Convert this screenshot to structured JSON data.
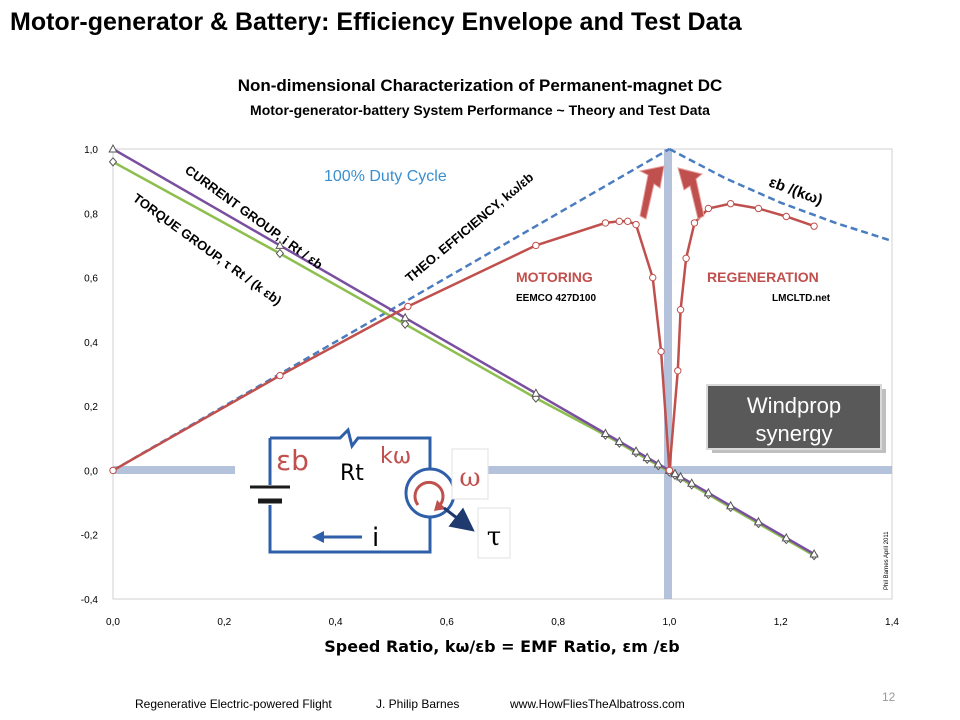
{
  "slide": {
    "title": "Motor-generator & Battery: Efficiency Envelope and Test Data"
  },
  "chart_data": {
    "type": "line",
    "title": "Non-dimensional Characterization of Permanent-magnet DC",
    "subtitle": "Motor-generator-battery System Performance ~ Theory and Test Data",
    "xlabel": "Speed Ratio, kω/εb = EMF Ratio, εm /εb",
    "xlim": [
      0,
      1.4
    ],
    "ylim": [
      -0.4,
      1.0
    ],
    "x_ticks": [
      "0,0",
      "0,2",
      "0,4",
      "0,6",
      "0,8",
      "1,0",
      "1,2",
      "1,4"
    ],
    "y_ticks": [
      "-0,4",
      "-0,2",
      "0,0",
      "0,2",
      "0,4",
      "0,6",
      "0,8",
      "1,0"
    ],
    "grid": false,
    "series": [
      {
        "name": "CURRENT GROUP, i Rt / εb",
        "color": "#7b4fa0",
        "marker": "triangle",
        "x": [
          0,
          0.3,
          0.525,
          0.76,
          0.885,
          0.91,
          0.94,
          0.96,
          0.98,
          1.0,
          1.01,
          1.02,
          1.04,
          1.07,
          1.11,
          1.16,
          1.21,
          1.26
        ],
        "y": [
          1.0,
          0.7,
          0.475,
          0.24,
          0.115,
          0.09,
          0.06,
          0.04,
          0.02,
          0.0,
          -0.01,
          -0.02,
          -0.04,
          -0.07,
          -0.11,
          -0.16,
          -0.21,
          -0.26
        ]
      },
      {
        "name": "TORQUE GROUP, τ Rt / (k εb)",
        "color": "#8dbf4f",
        "marker": "diamond",
        "x": [
          0,
          0.3,
          0.525,
          0.76,
          0.885,
          0.91,
          0.94,
          0.96,
          0.98,
          1.0,
          1.01,
          1.02,
          1.04,
          1.07,
          1.11,
          1.16,
          1.21,
          1.26
        ],
        "y": [
          0.96,
          0.675,
          0.455,
          0.225,
          0.11,
          0.085,
          0.055,
          0.035,
          0.015,
          -0.005,
          -0.015,
          -0.025,
          -0.045,
          -0.075,
          -0.115,
          -0.165,
          -0.215,
          -0.265
        ]
      },
      {
        "name": "THEO. EFFICIENCY, kω/εb",
        "color": "#4a7cc0",
        "style": "dashed",
        "x": [
          0,
          1.0
        ],
        "y": [
          0,
          1.0
        ]
      },
      {
        "name": "εb /(kω)",
        "color": "#4a7cc0",
        "style": "dashed",
        "x": [
          1.0,
          1.1,
          1.2,
          1.3,
          1.4
        ],
        "y": [
          1.0,
          0.909,
          0.833,
          0.769,
          0.714
        ]
      },
      {
        "name": "MOTORING",
        "color": "#c0504d",
        "marker": "circle",
        "x": [
          0,
          0.3,
          0.53,
          0.76,
          0.885,
          0.91,
          0.925,
          0.94,
          0.97,
          0.985,
          1.0
        ],
        "y": [
          0,
          0.295,
          0.51,
          0.7,
          0.77,
          0.775,
          0.775,
          0.765,
          0.6,
          0.37,
          0.0
        ]
      },
      {
        "name": "REGENERATION",
        "color": "#c0504d",
        "marker": "circle",
        "x": [
          1.0,
          1.015,
          1.02,
          1.03,
          1.045,
          1.07,
          1.11,
          1.16,
          1.21,
          1.26
        ],
        "y": [
          0.0,
          0.31,
          0.5,
          0.66,
          0.77,
          0.815,
          0.83,
          0.815,
          0.79,
          0.76
        ]
      }
    ],
    "annotations": {
      "duty_cycle": "100% Duty Cycle",
      "current_group": "CURRENT GROUP, i Rt / εb",
      "torque_group": "TORQUE GROUP, τ Rt / (k εb)",
      "theo_efficiency": "THEO. EFFICIENCY, kω/εb",
      "inverse_ratio": "εb /(kω)",
      "motoring": "MOTORING",
      "motoring_source": "EEMCO 427D100",
      "regeneration": "REGENERATION",
      "regeneration_source": "LMCLTD.net",
      "windprop_line1": "Windprop",
      "windprop_line2": "synergy",
      "author_tag": "Phil Barnes April 2011",
      "circuit_eb": "εb",
      "circuit_kw": "kω",
      "circuit_rt": "Rt",
      "circuit_i": "i",
      "circuit_omega": "ω",
      "circuit_tau": "τ"
    }
  },
  "footer": {
    "left": "Regenerative Electric-powered Flight",
    "author": "J. Philip Barnes",
    "url": "www.HowFliesTheAlbatross.com",
    "page": "12"
  }
}
